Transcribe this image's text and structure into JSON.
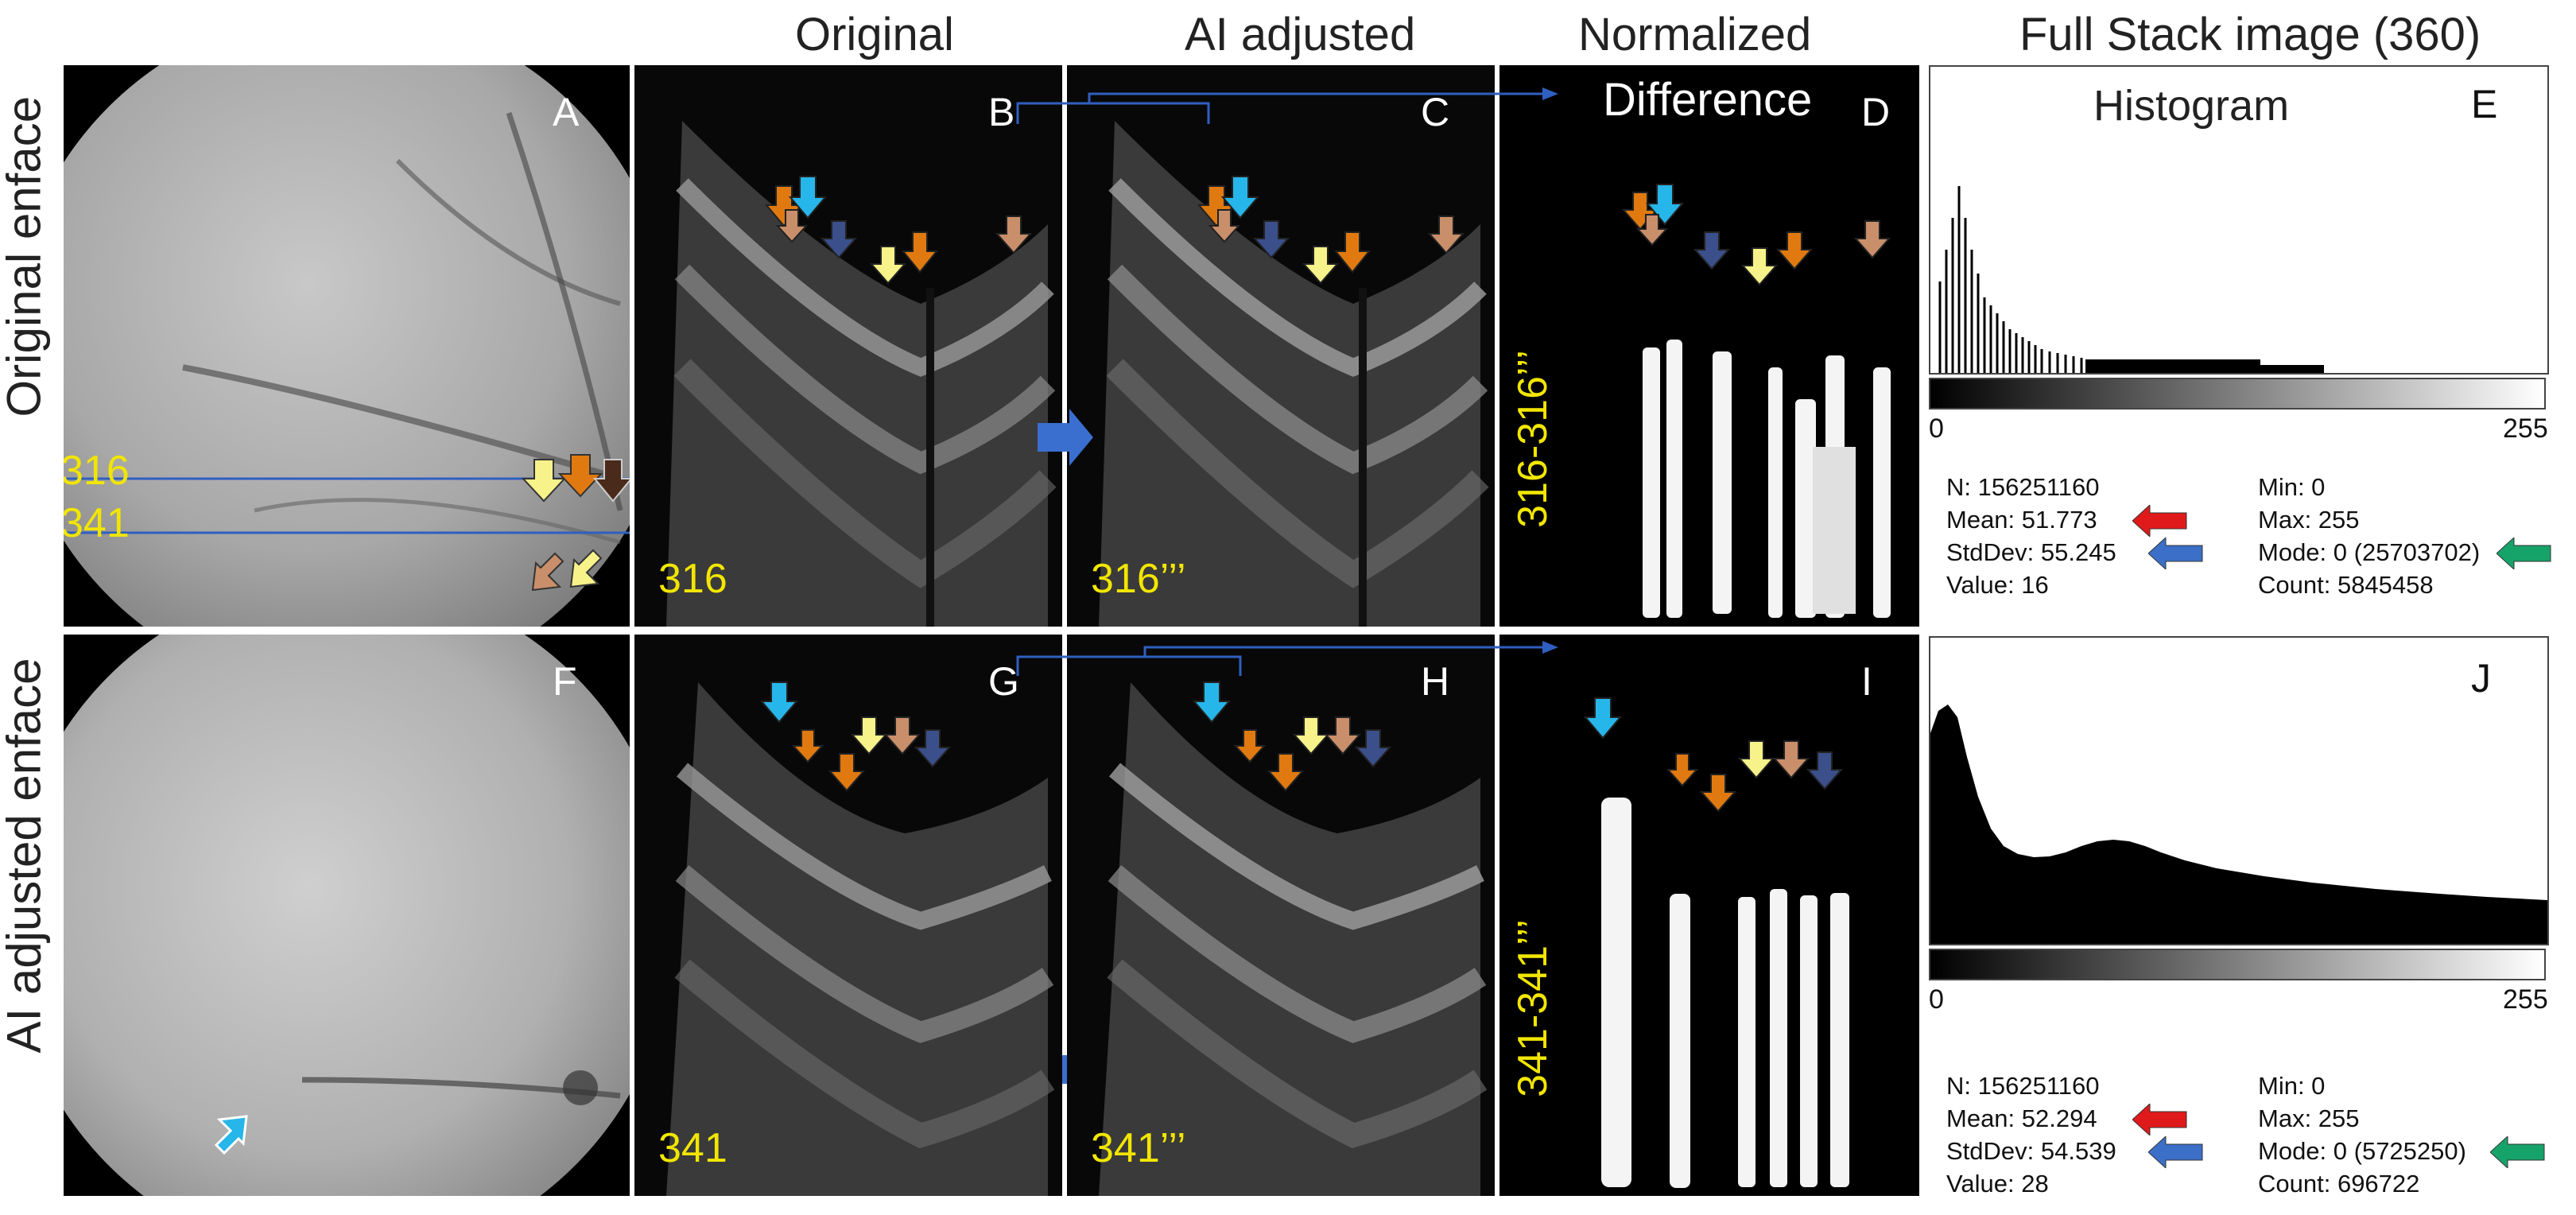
{
  "headers": {
    "original": "Original",
    "ai_adjusted": "AI adjusted",
    "normalized": "Normalized",
    "difference": "Difference",
    "full_stack": "Full Stack image (360)",
    "histogram": "Histogram"
  },
  "row_labels": {
    "top": "Original enface",
    "bottom": "AI adjusted enface"
  },
  "panel_letters": [
    "A",
    "B",
    "C",
    "D",
    "E",
    "F",
    "G",
    "H",
    "I",
    "J"
  ],
  "slice_labels": {
    "a_upper": "316",
    "a_lower": "341",
    "b": "316",
    "c": "316’’’",
    "d": "316-316’’’",
    "g": "341",
    "h": "341’’’",
    "i": "341-341’’’"
  },
  "histogram_axis": {
    "min_label": "0",
    "max_label": "255"
  },
  "stats_top": {
    "n": "N: 156251160",
    "mean": "Mean: 51.773",
    "stddev": "StdDev: 55.245",
    "value": "Value: 16",
    "min": "Min: 0",
    "max": "Max: 255",
    "mode": "Mode: 0 (25703702)",
    "count": "Count: 5845458"
  },
  "stats_bottom": {
    "n": "N: 156251160",
    "mean": "Mean: 52.294",
    "stddev": "StdDev: 54.539",
    "value": "Value: 28",
    "min": "Min: 0",
    "max": "Max: 255",
    "mode": "Mode: 0 (5725250)",
    "count": "Count: 696722"
  },
  "colors": {
    "label_yellow": "#f2e600",
    "arrow_orange": "#e07a10",
    "arrow_cyan": "#27b6ea",
    "arrow_red": "#e01a1a",
    "arrow_blue": "#3b6fc8",
    "arrow_green": "#16a36a",
    "big_arrow_blue": "#3a6fd0"
  }
}
